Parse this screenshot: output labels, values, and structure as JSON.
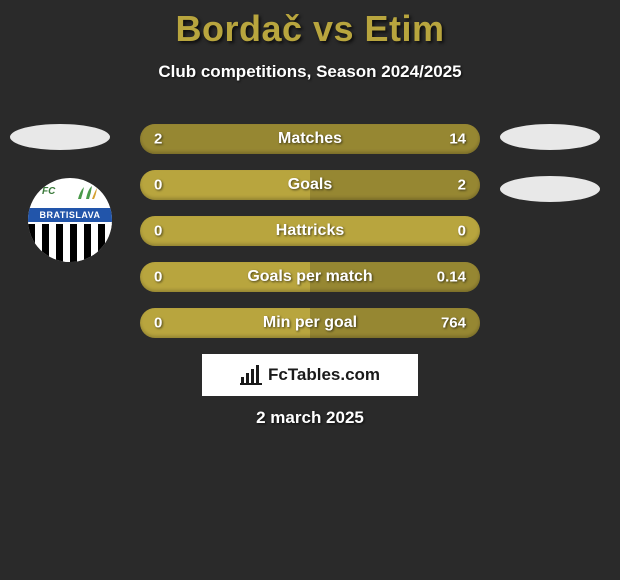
{
  "header": {
    "player1": "Bordač",
    "player2": "Etim",
    "title": "Bordač vs Etim",
    "subtitle": "Club competitions, Season 2024/2025"
  },
  "colors": {
    "background": "#2a2a2a",
    "bar_base": "#b8a53e",
    "bar_fill": "rgba(0,0,0,0.18)",
    "text_white": "#ffffff",
    "title_color": "#b8a53e"
  },
  "club": {
    "fc_text": "FC",
    "banner_text": "BRATISLAVA"
  },
  "stats": [
    {
      "label": "Matches",
      "left_val": "2",
      "right_val": "14",
      "left_pct": 12.5,
      "right_pct": 87.5
    },
    {
      "label": "Goals",
      "left_val": "0",
      "right_val": "2",
      "left_pct": 0,
      "right_pct": 50
    },
    {
      "label": "Hattricks",
      "left_val": "0",
      "right_val": "0",
      "left_pct": 0,
      "right_pct": 0
    },
    {
      "label": "Goals per match",
      "left_val": "0",
      "right_val": "0.14",
      "left_pct": 0,
      "right_pct": 50
    },
    {
      "label": "Min per goal",
      "left_val": "0",
      "right_val": "764",
      "left_pct": 0,
      "right_pct": 50
    }
  ],
  "branding": {
    "text": "FcTables.com"
  },
  "footer": {
    "date": "2 march 2025"
  }
}
